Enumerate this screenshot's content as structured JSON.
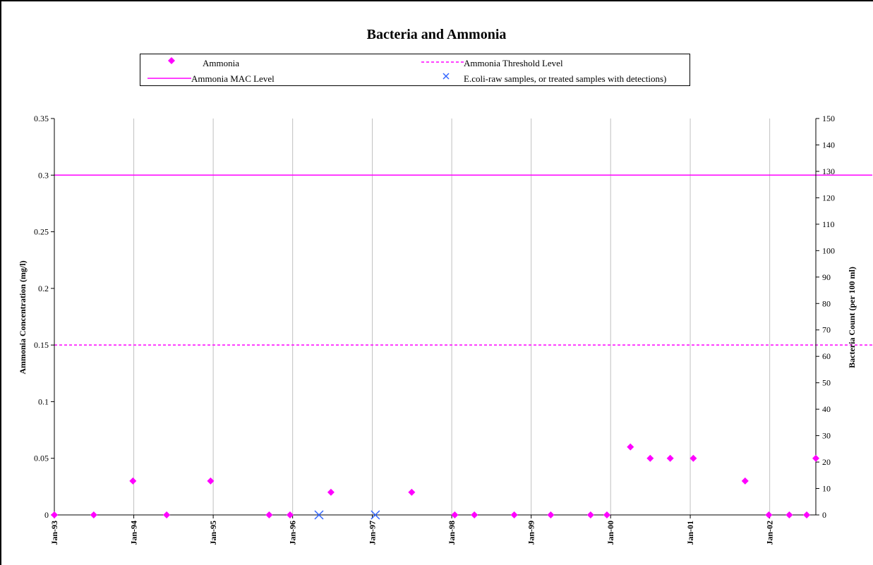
{
  "chart_data": {
    "type": "scatter",
    "title": "Bacteria and Ammonia",
    "ylabel": "Ammonia Concentration (mg/l)",
    "y2label": "Bacteria Count (per 100 ml)",
    "ylim": [
      0,
      0.35
    ],
    "y2lim": [
      0,
      150
    ],
    "xlim": [
      "1993-01-01",
      "2002-08-01"
    ],
    "x_ticks": [
      {
        "date": "1993-01-01",
        "label": "Jan-93"
      },
      {
        "date": "1994-01-01",
        "label": "Jan-94"
      },
      {
        "date": "1995-01-01",
        "label": "Jan-95"
      },
      {
        "date": "1996-01-01",
        "label": "Jan-96"
      },
      {
        "date": "1997-01-01",
        "label": "Jan-97"
      },
      {
        "date": "1998-01-01",
        "label": "Jan-98"
      },
      {
        "date": "1999-01-01",
        "label": "Jan-99"
      },
      {
        "date": "2000-01-01",
        "label": "Jan-00"
      },
      {
        "date": "2001-01-01",
        "label": "Jan-01"
      },
      {
        "date": "2002-01-01",
        "label": "Jan-02"
      }
    ],
    "y_ticks": [
      "0",
      "0.05",
      "0.1",
      "0.15",
      "0.2",
      "0.25",
      "0.3",
      "0.35"
    ],
    "y2_ticks": [
      "0",
      "10",
      "20",
      "30",
      "40",
      "50",
      "60",
      "70",
      "80",
      "90",
      "100",
      "110",
      "120",
      "130",
      "140",
      "150"
    ],
    "grid": "vertical",
    "legend_position": "top",
    "legend": {
      "ammonia": "Ammonia",
      "threshold": "Ammonia Threshold Level",
      "mac": "Ammonia MAC Level",
      "ecoli": "E.coli-raw samples, or treated samples with detections)"
    },
    "colors": {
      "ammonia": "#ff00ff",
      "threshold": "#ff00ff",
      "mac": "#ff00ff",
      "ecoli": "#3366ff",
      "grid": "#c0c0c0"
    },
    "mac_level": 0.3,
    "threshold_level": 0.15,
    "series": [
      {
        "name": "Ammonia",
        "axis": "left",
        "marker": "diamond",
        "points": [
          {
            "x": "1993-01-01",
            "y": 0
          },
          {
            "x": "1993-07-01",
            "y": 0
          },
          {
            "x": "1993-12-28",
            "y": 0.03
          },
          {
            "x": "1994-06-01",
            "y": 0
          },
          {
            "x": "1994-12-20",
            "y": 0.03
          },
          {
            "x": "1995-09-15",
            "y": 0
          },
          {
            "x": "1995-12-20",
            "y": 0
          },
          {
            "x": "1996-06-25",
            "y": 0.02
          },
          {
            "x": "1997-07-01",
            "y": 0.02
          },
          {
            "x": "1998-01-15",
            "y": 0
          },
          {
            "x": "1998-04-15",
            "y": 0
          },
          {
            "x": "1998-10-15",
            "y": 0
          },
          {
            "x": "1999-04-01",
            "y": 0
          },
          {
            "x": "1999-10-01",
            "y": 0
          },
          {
            "x": "1999-12-15",
            "y": 0
          },
          {
            "x": "2000-04-01",
            "y": 0.06
          },
          {
            "x": "2000-07-01",
            "y": 0.05
          },
          {
            "x": "2000-10-01",
            "y": 0.05
          },
          {
            "x": "2001-01-15",
            "y": 0.05
          },
          {
            "x": "2001-09-10",
            "y": 0.03
          },
          {
            "x": "2001-12-28",
            "y": 0
          },
          {
            "x": "2002-04-01",
            "y": 0
          },
          {
            "x": "2002-06-20",
            "y": 0
          },
          {
            "x": "2002-08-01",
            "y": 0.05
          }
        ]
      },
      {
        "name": "E.coli-raw samples, or treated samples with detections)",
        "axis": "right",
        "marker": "x",
        "points": [
          {
            "x": "1996-05-01",
            "y": 0
          },
          {
            "x": "1997-01-15",
            "y": 0
          }
        ]
      }
    ]
  }
}
